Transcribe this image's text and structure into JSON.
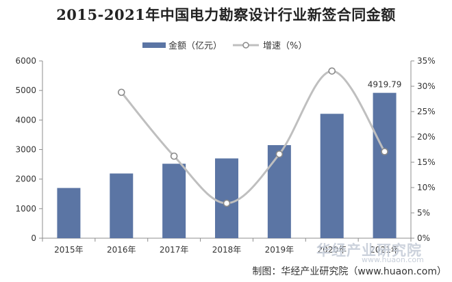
{
  "chart_data": {
    "type": "bar",
    "title": "2015-2021年中国电力勘察设计行业新签合同金额",
    "categories": [
      "2015年",
      "2016年",
      "2017年",
      "2018年",
      "2019年",
      "2020年",
      "2021年"
    ],
    "series": [
      {
        "name": "金额（亿元）",
        "type": "bar",
        "axis": "left",
        "color": "#5b75a4",
        "values": [
          1700,
          2190,
          2520,
          2700,
          3150,
          4210,
          4919.79
        ]
      },
      {
        "name": "增速（%）",
        "type": "line",
        "axis": "right",
        "color": "#bfbfbf",
        "values": [
          null,
          28.8,
          16.2,
          6.9,
          16.6,
          33.0,
          17.1
        ]
      }
    ],
    "annotations": [
      {
        "category": "2021年",
        "text": "4919.79"
      }
    ],
    "y_left": {
      "min": 0,
      "max": 6000,
      "ticks": [
        0,
        1000,
        2000,
        3000,
        4000,
        5000,
        6000
      ]
    },
    "y_right": {
      "min": 0,
      "max": 35,
      "ticks": [
        "0%",
        "5%",
        "10%",
        "15%",
        "20%",
        "25%",
        "30%",
        "35%"
      ]
    },
    "legend_position": "top-center",
    "grid": false
  },
  "watermark": "华经产业研究院",
  "watermark_sub": "www.huaon.com",
  "source": "制图：华经产业研究院（www.huaon.com）"
}
